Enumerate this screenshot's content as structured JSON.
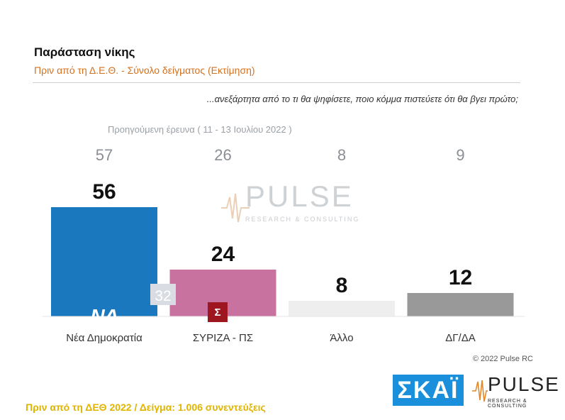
{
  "title": "Παράσταση νίκης",
  "subtitle": "Πριν από τη Δ.Ε.Θ.  -  Σύνολο δείγματος   (Εκτίμηση)",
  "question": "...ανεξάρτητα από το τι θα ψηφίσετε, ποιο κόμμα πιστεύετε ότι θα βγει πρώτο;",
  "previous_survey_label": "Προηγούμενη έρευνα   ( 11 - 13 Ιουλίου  2022 )",
  "copyright": "© 2022 Pulse RC",
  "footer": "Πριν από τη ΔΕΘ  2022  /  Δείγμα:  1.006 συνεντεύξεις",
  "watermark": {
    "word": "PULSE",
    "sub": "RESEARCH & CONSULTING"
  },
  "logos": {
    "skai": "ΣΚΑΪ",
    "pulse_word": "PULSE",
    "pulse_sub": "RESEARCH & CONSULTING",
    "nd_text": "ΝΔ",
    "syriza_text": "Σ"
  },
  "chart_data": {
    "type": "bar",
    "title": "Παράσταση νίκης",
    "subtitle": "Πριν από τη Δ.Ε.Θ.  -  Σύνολο δείγματος   (Εκτίμηση)",
    "categories": [
      "Νέα Δημοκρατία",
      "ΣΥΡΙΖΑ - ΠΣ",
      "Άλλο",
      "ΔΓ/ΔΑ"
    ],
    "values": [
      56,
      24,
      8,
      12
    ],
    "previous_values": [
      57,
      26,
      8,
      9
    ],
    "inner_annotation": {
      "category": "Νέα Δημοκρατία",
      "value": "32"
    },
    "colors": [
      "#1a78be",
      "#c8739f",
      "#eeeeee",
      "#999999"
    ],
    "ylim": [
      0,
      60
    ],
    "grid": false,
    "legend": "none"
  }
}
